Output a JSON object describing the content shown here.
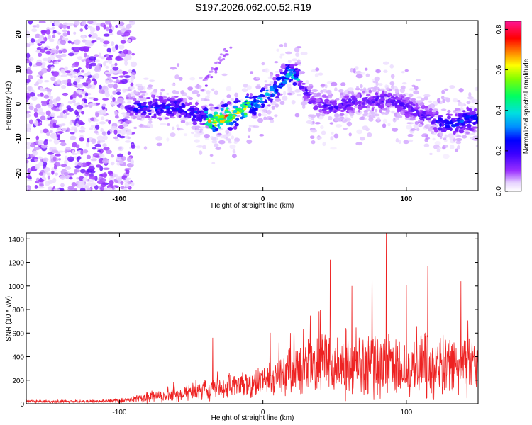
{
  "title": "S197.2026.062.00.52.R19",
  "chart_data": [
    {
      "type": "heatmap",
      "xlabel": "Height of straight line (km)",
      "ylabel": "Frequency (Hz)",
      "xlim": [
        -165,
        150
      ],
      "ylim": [
        -25,
        24
      ],
      "xticks": [
        -100,
        0,
        100
      ],
      "yticks": [
        -20,
        -10,
        0,
        10,
        20
      ],
      "colorbar": {
        "label": "Normalized spectral amplitude",
        "range": [
          0,
          0.84
        ],
        "ticks": [
          0.0,
          0.2,
          0.4,
          0.6,
          0.8
        ],
        "colormap": [
          "#ffffff",
          "#d8b8ff",
          "#8a2be2",
          "#5500ff",
          "#0000ff",
          "#00bfff",
          "#00ffcc",
          "#00ff00",
          "#ffff00",
          "#ff8000",
          "#ff0000",
          "#ff1493"
        ]
      },
      "noise_region_km": [
        -165,
        -95
      ],
      "ridge": [
        {
          "x": -95,
          "y": -1
        },
        {
          "x": -80,
          "y": -1
        },
        {
          "x": -60,
          "y": -1
        },
        {
          "x": -45,
          "y": -3
        },
        {
          "x": -35,
          "y": -5
        },
        {
          "x": -20,
          "y": -3
        },
        {
          "x": -5,
          "y": 0
        },
        {
          "x": 8,
          "y": 4
        },
        {
          "x": 18,
          "y": 9
        },
        {
          "x": 25,
          "y": 7
        },
        {
          "x": 35,
          "y": 0
        },
        {
          "x": 50,
          "y": -1
        },
        {
          "x": 70,
          "y": 1
        },
        {
          "x": 90,
          "y": 1
        },
        {
          "x": 110,
          "y": -3
        },
        {
          "x": 130,
          "y": -6
        },
        {
          "x": 148,
          "y": -4
        }
      ]
    },
    {
      "type": "line",
      "xlabel": "Height of straight line (km)",
      "ylabel": "SNR (10 * v/v)",
      "xlim": [
        -165,
        150
      ],
      "ylim": [
        0,
        1450
      ],
      "xticks": [
        -100,
        0,
        100
      ],
      "yticks": [
        0,
        200,
        400,
        600,
        800,
        1000,
        1200,
        1400
      ],
      "series_color": "#ee2222",
      "envelope": [
        {
          "x": -165,
          "base": 20,
          "spread": 15
        },
        {
          "x": -110,
          "base": 20,
          "spread": 15
        },
        {
          "x": -95,
          "base": 30,
          "spread": 25
        },
        {
          "x": -80,
          "base": 55,
          "spread": 60
        },
        {
          "x": -65,
          "base": 75,
          "spread": 70
        },
        {
          "x": -50,
          "base": 100,
          "spread": 90
        },
        {
          "x": -35,
          "base": 120,
          "spread": 110
        },
        {
          "x": -20,
          "base": 150,
          "spread": 120
        },
        {
          "x": -5,
          "base": 180,
          "spread": 140
        },
        {
          "x": 10,
          "base": 230,
          "spread": 190
        },
        {
          "x": 25,
          "base": 300,
          "spread": 280
        },
        {
          "x": 40,
          "base": 340,
          "spread": 330
        },
        {
          "x": 60,
          "base": 340,
          "spread": 340
        },
        {
          "x": 80,
          "base": 330,
          "spread": 330
        },
        {
          "x": 100,
          "base": 320,
          "spread": 320
        },
        {
          "x": 120,
          "base": 320,
          "spread": 320
        },
        {
          "x": 150,
          "base": 300,
          "spread": 280
        }
      ],
      "peaks": [
        {
          "x": -35,
          "y": 560
        },
        {
          "x": 5,
          "y": 600
        },
        {
          "x": 47,
          "y": 1220
        },
        {
          "x": 62,
          "y": 1000
        },
        {
          "x": 76,
          "y": 1210
        },
        {
          "x": 86,
          "y": 1450
        },
        {
          "x": 100,
          "y": 1010
        },
        {
          "x": 115,
          "y": 1170
        },
        {
          "x": 138,
          "y": 1040
        }
      ]
    }
  ]
}
